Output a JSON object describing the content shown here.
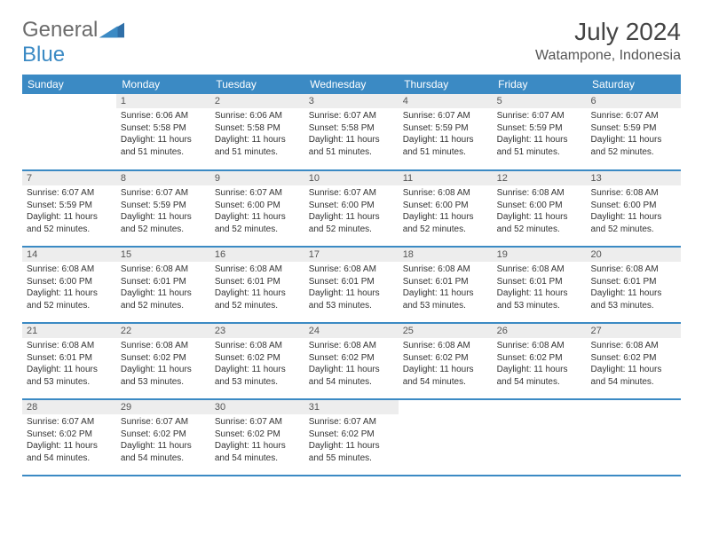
{
  "logo": {
    "word1": "General",
    "word2": "Blue"
  },
  "title": "July 2024",
  "location": "Watampone, Indonesia",
  "colors": {
    "header_bg": "#3b8ac4",
    "header_text": "#ffffff",
    "daynum_bg": "#ededed",
    "text": "#333333",
    "page_bg": "#ffffff",
    "logo_gray": "#6b6b6b",
    "logo_blue": "#3b8ac4"
  },
  "fonts": {
    "title_size_pt": 21,
    "location_size_pt": 12,
    "weekday_size_pt": 9,
    "daynum_size_pt": 8,
    "body_size_pt": 7.5
  },
  "weekdays": [
    "Sunday",
    "Monday",
    "Tuesday",
    "Wednesday",
    "Thursday",
    "Friday",
    "Saturday"
  ],
  "weeks": [
    [
      {
        "day": "",
        "sunrise": "",
        "sunset": "",
        "daylight": ""
      },
      {
        "day": "1",
        "sunrise": "Sunrise: 6:06 AM",
        "sunset": "Sunset: 5:58 PM",
        "daylight": "Daylight: 11 hours and 51 minutes."
      },
      {
        "day": "2",
        "sunrise": "Sunrise: 6:06 AM",
        "sunset": "Sunset: 5:58 PM",
        "daylight": "Daylight: 11 hours and 51 minutes."
      },
      {
        "day": "3",
        "sunrise": "Sunrise: 6:07 AM",
        "sunset": "Sunset: 5:58 PM",
        "daylight": "Daylight: 11 hours and 51 minutes."
      },
      {
        "day": "4",
        "sunrise": "Sunrise: 6:07 AM",
        "sunset": "Sunset: 5:59 PM",
        "daylight": "Daylight: 11 hours and 51 minutes."
      },
      {
        "day": "5",
        "sunrise": "Sunrise: 6:07 AM",
        "sunset": "Sunset: 5:59 PM",
        "daylight": "Daylight: 11 hours and 51 minutes."
      },
      {
        "day": "6",
        "sunrise": "Sunrise: 6:07 AM",
        "sunset": "Sunset: 5:59 PM",
        "daylight": "Daylight: 11 hours and 52 minutes."
      }
    ],
    [
      {
        "day": "7",
        "sunrise": "Sunrise: 6:07 AM",
        "sunset": "Sunset: 5:59 PM",
        "daylight": "Daylight: 11 hours and 52 minutes."
      },
      {
        "day": "8",
        "sunrise": "Sunrise: 6:07 AM",
        "sunset": "Sunset: 5:59 PM",
        "daylight": "Daylight: 11 hours and 52 minutes."
      },
      {
        "day": "9",
        "sunrise": "Sunrise: 6:07 AM",
        "sunset": "Sunset: 6:00 PM",
        "daylight": "Daylight: 11 hours and 52 minutes."
      },
      {
        "day": "10",
        "sunrise": "Sunrise: 6:07 AM",
        "sunset": "Sunset: 6:00 PM",
        "daylight": "Daylight: 11 hours and 52 minutes."
      },
      {
        "day": "11",
        "sunrise": "Sunrise: 6:08 AM",
        "sunset": "Sunset: 6:00 PM",
        "daylight": "Daylight: 11 hours and 52 minutes."
      },
      {
        "day": "12",
        "sunrise": "Sunrise: 6:08 AM",
        "sunset": "Sunset: 6:00 PM",
        "daylight": "Daylight: 11 hours and 52 minutes."
      },
      {
        "day": "13",
        "sunrise": "Sunrise: 6:08 AM",
        "sunset": "Sunset: 6:00 PM",
        "daylight": "Daylight: 11 hours and 52 minutes."
      }
    ],
    [
      {
        "day": "14",
        "sunrise": "Sunrise: 6:08 AM",
        "sunset": "Sunset: 6:00 PM",
        "daylight": "Daylight: 11 hours and 52 minutes."
      },
      {
        "day": "15",
        "sunrise": "Sunrise: 6:08 AM",
        "sunset": "Sunset: 6:01 PM",
        "daylight": "Daylight: 11 hours and 52 minutes."
      },
      {
        "day": "16",
        "sunrise": "Sunrise: 6:08 AM",
        "sunset": "Sunset: 6:01 PM",
        "daylight": "Daylight: 11 hours and 52 minutes."
      },
      {
        "day": "17",
        "sunrise": "Sunrise: 6:08 AM",
        "sunset": "Sunset: 6:01 PM",
        "daylight": "Daylight: 11 hours and 53 minutes."
      },
      {
        "day": "18",
        "sunrise": "Sunrise: 6:08 AM",
        "sunset": "Sunset: 6:01 PM",
        "daylight": "Daylight: 11 hours and 53 minutes."
      },
      {
        "day": "19",
        "sunrise": "Sunrise: 6:08 AM",
        "sunset": "Sunset: 6:01 PM",
        "daylight": "Daylight: 11 hours and 53 minutes."
      },
      {
        "day": "20",
        "sunrise": "Sunrise: 6:08 AM",
        "sunset": "Sunset: 6:01 PM",
        "daylight": "Daylight: 11 hours and 53 minutes."
      }
    ],
    [
      {
        "day": "21",
        "sunrise": "Sunrise: 6:08 AM",
        "sunset": "Sunset: 6:01 PM",
        "daylight": "Daylight: 11 hours and 53 minutes."
      },
      {
        "day": "22",
        "sunrise": "Sunrise: 6:08 AM",
        "sunset": "Sunset: 6:02 PM",
        "daylight": "Daylight: 11 hours and 53 minutes."
      },
      {
        "day": "23",
        "sunrise": "Sunrise: 6:08 AM",
        "sunset": "Sunset: 6:02 PM",
        "daylight": "Daylight: 11 hours and 53 minutes."
      },
      {
        "day": "24",
        "sunrise": "Sunrise: 6:08 AM",
        "sunset": "Sunset: 6:02 PM",
        "daylight": "Daylight: 11 hours and 54 minutes."
      },
      {
        "day": "25",
        "sunrise": "Sunrise: 6:08 AM",
        "sunset": "Sunset: 6:02 PM",
        "daylight": "Daylight: 11 hours and 54 minutes."
      },
      {
        "day": "26",
        "sunrise": "Sunrise: 6:08 AM",
        "sunset": "Sunset: 6:02 PM",
        "daylight": "Daylight: 11 hours and 54 minutes."
      },
      {
        "day": "27",
        "sunrise": "Sunrise: 6:08 AM",
        "sunset": "Sunset: 6:02 PM",
        "daylight": "Daylight: 11 hours and 54 minutes."
      }
    ],
    [
      {
        "day": "28",
        "sunrise": "Sunrise: 6:07 AM",
        "sunset": "Sunset: 6:02 PM",
        "daylight": "Daylight: 11 hours and 54 minutes."
      },
      {
        "day": "29",
        "sunrise": "Sunrise: 6:07 AM",
        "sunset": "Sunset: 6:02 PM",
        "daylight": "Daylight: 11 hours and 54 minutes."
      },
      {
        "day": "30",
        "sunrise": "Sunrise: 6:07 AM",
        "sunset": "Sunset: 6:02 PM",
        "daylight": "Daylight: 11 hours and 54 minutes."
      },
      {
        "day": "31",
        "sunrise": "Sunrise: 6:07 AM",
        "sunset": "Sunset: 6:02 PM",
        "daylight": "Daylight: 11 hours and 55 minutes."
      },
      {
        "day": "",
        "sunrise": "",
        "sunset": "",
        "daylight": ""
      },
      {
        "day": "",
        "sunrise": "",
        "sunset": "",
        "daylight": ""
      },
      {
        "day": "",
        "sunrise": "",
        "sunset": "",
        "daylight": ""
      }
    ]
  ]
}
